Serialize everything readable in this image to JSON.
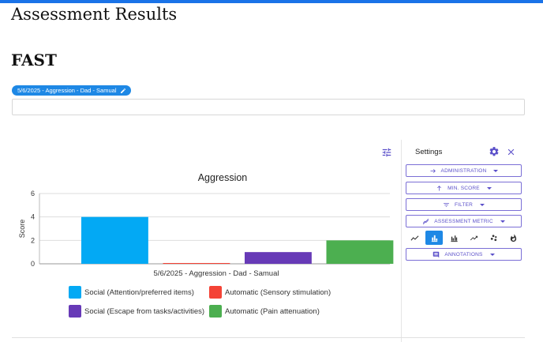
{
  "page": {
    "title": "Assessment Results",
    "section_title": "FAST"
  },
  "filter_chip": {
    "label": "5/6/2025 - Aggression - Dad - Samual"
  },
  "search": {
    "value": "",
    "placeholder": ""
  },
  "settings": {
    "title": "Settings",
    "buttons": [
      {
        "label": "ADMINISTRATION",
        "icon": "arrow-right-icon"
      },
      {
        "label": "MIN. SCORE",
        "icon": "arrow-up-icon"
      },
      {
        "label": "FILTER",
        "icon": "filter-icon"
      },
      {
        "label": "ASSESSMENT METRIC",
        "icon": "chart-line-off-icon"
      },
      {
        "label": "ANNOTATIONS",
        "icon": "comment-icon"
      }
    ],
    "chart_types": [
      {
        "name": "line",
        "active": false
      },
      {
        "name": "bar",
        "active": true
      },
      {
        "name": "grouped-bar",
        "active": false
      },
      {
        "name": "trend",
        "active": false
      },
      {
        "name": "scatter",
        "active": false
      },
      {
        "name": "heat",
        "active": false
      }
    ]
  },
  "colors": {
    "accent": "#5a4fc9",
    "chip": "#1e88e5",
    "social_attention": "#03a9f4",
    "automatic_sensory": "#f44336",
    "social_escape": "#673ab7",
    "automatic_pain": "#4caf50"
  },
  "chart_data": {
    "type": "bar",
    "title": "Aggression",
    "xlabel": "5/6/2025 - Aggression - Dad - Samual",
    "ylabel": "Score",
    "ylim": [
      0,
      6
    ],
    "yticks": [
      0,
      2,
      4,
      6
    ],
    "grid": true,
    "legend_placement": "bottom",
    "categories": [
      "5/6/2025 - Aggression - Dad - Samual"
    ],
    "series": [
      {
        "name": "Social (Attention/preferred items)",
        "values": [
          4
        ],
        "color": "#03a9f4"
      },
      {
        "name": "Automatic (Sensory stimulation)",
        "values": [
          0
        ],
        "color": "#f44336"
      },
      {
        "name": "Social (Escape from tasks/activities)",
        "values": [
          1
        ],
        "color": "#673ab7"
      },
      {
        "name": "Automatic (Pain attenuation)",
        "values": [
          2
        ],
        "color": "#4caf50"
      }
    ]
  }
}
